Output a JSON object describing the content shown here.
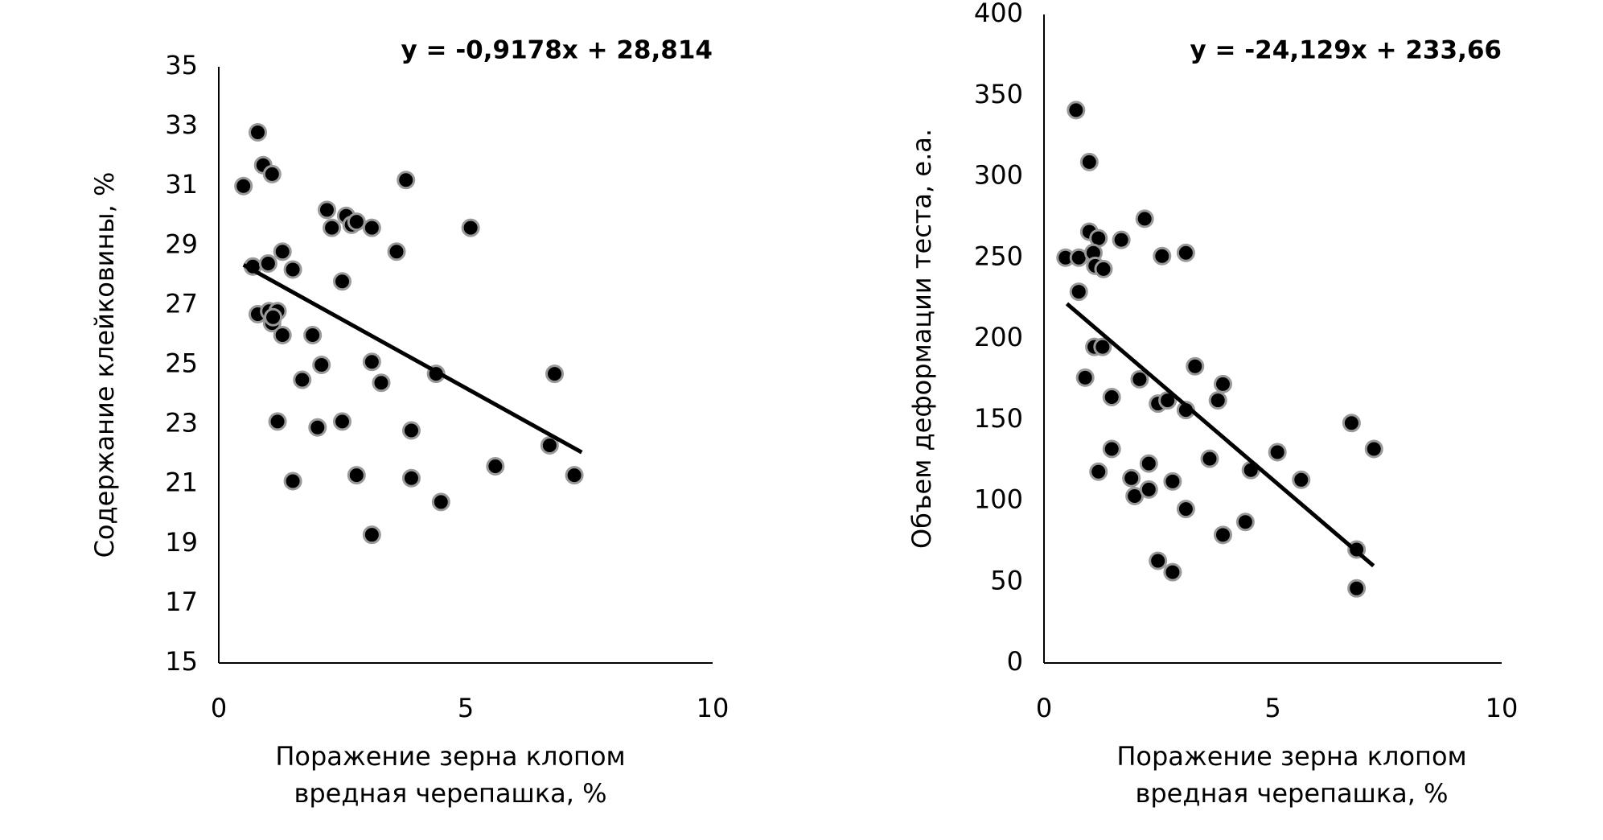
{
  "chart_data": [
    {
      "type": "scatter",
      "annotation": "y = -0,9178x + 28,814",
      "ylabel": "Содержание клейковины, %",
      "xlabel": [
        "Поражение зерна клопом",
        "вредная черепашка, %"
      ],
      "xlim": [
        0,
        10
      ],
      "xticks": [
        0,
        5,
        10
      ],
      "ylim": [
        15,
        35
      ],
      "yticks": [
        15,
        17,
        19,
        21,
        23,
        25,
        27,
        29,
        31,
        33,
        35
      ],
      "color": "#000000",
      "x": [
        0.5,
        0.79,
        0.9,
        1.08,
        0.69,
        1.0,
        1.29,
        1.5,
        0.79,
        1.02,
        1.19,
        1.08,
        1.1,
        1.29,
        1.19,
        1.5,
        1.69,
        1.9,
        2.0,
        2.08,
        2.19,
        2.29,
        2.58,
        2.69,
        2.79,
        3.1,
        2.5,
        2.5,
        2.79,
        3.1,
        3.29,
        3.1,
        3.6,
        3.79,
        3.9,
        3.9,
        4.4,
        4.5,
        5.1,
        5.6,
        6.7,
        6.8,
        7.2
      ],
      "values": [
        31.0,
        32.8,
        31.7,
        31.4,
        28.3,
        28.4,
        28.8,
        28.2,
        26.7,
        26.8,
        26.8,
        26.4,
        26.6,
        26.0,
        23.1,
        21.1,
        24.5,
        26.0,
        22.9,
        25.0,
        30.2,
        29.6,
        30.0,
        29.7,
        29.8,
        29.6,
        27.8,
        23.1,
        21.3,
        25.1,
        24.4,
        19.3,
        28.8,
        31.2,
        22.8,
        21.2,
        24.7,
        20.4,
        29.6,
        21.6,
        22.3,
        24.7,
        21.3
      ],
      "trendline": {
        "x": [
          0.5,
          7.35
        ],
        "y": [
          28.355,
          22.068
        ]
      }
    },
    {
      "type": "scatter",
      "annotation": "y = -24,129x + 233,66",
      "ylabel": "Объем деформации теста, е.а.",
      "xlabel": [
        "Поражение зерна клопом",
        "вредная черепашка, %"
      ],
      "xlim": [
        0,
        10
      ],
      "xticks": [
        0,
        5,
        10
      ],
      "ylim": [
        0,
        400
      ],
      "yticks": [
        0,
        50,
        100,
        150,
        200,
        250,
        300,
        350,
        400
      ],
      "color": "#000000",
      "x": [
        0.7,
        0.99,
        0.47,
        0.76,
        0.99,
        1.19,
        1.08,
        1.12,
        1.3,
        0.76,
        1.69,
        2.2,
        2.58,
        3.1,
        1.1,
        1.28,
        0.9,
        1.48,
        1.48,
        1.19,
        1.91,
        1.98,
        2.09,
        2.29,
        2.29,
        2.49,
        2.7,
        2.81,
        2.49,
        2.81,
        3.1,
        3.1,
        3.3,
        3.62,
        3.8,
        3.91,
        3.91,
        4.4,
        4.52,
        5.1,
        5.62,
        6.72,
        7.21,
        6.83,
        6.83
      ],
      "values": [
        341,
        309,
        250,
        250,
        266,
        262,
        253,
        245,
        243,
        229,
        261,
        274,
        251,
        253,
        195,
        195,
        176,
        164,
        132,
        118,
        114,
        103,
        175,
        123,
        107,
        160,
        162,
        112,
        63,
        56,
        156,
        95,
        183,
        126,
        162,
        172,
        79,
        87,
        119,
        130,
        113,
        148,
        132,
        70,
        46
      ],
      "trendline": {
        "x": [
          0.5,
          7.2
        ],
        "y": [
          221.6,
          59.93
        ]
      }
    }
  ]
}
